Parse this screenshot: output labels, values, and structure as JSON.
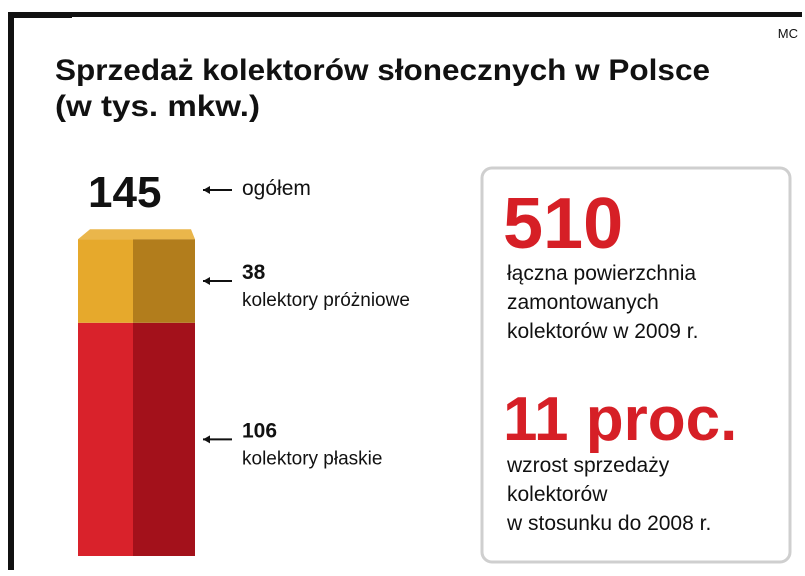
{
  "chart_data": {
    "type": "stacked_bar",
    "title": "Sprzedaż kolektorów słonecznych w Polsce",
    "subtitle": "(w tys. mkw.)",
    "credit": "MC",
    "total": {
      "value": 145,
      "label": "ogółem"
    },
    "series": [
      {
        "name": "kolektory płaskie",
        "color": "#d9222b",
        "shade": "#a3111b",
        "values": [
          106
        ]
      },
      {
        "name": "kolektory próżniowe",
        "color": "#e6a92c",
        "shade": "#b27d1c",
        "values": [
          38
        ]
      }
    ],
    "facts": [
      {
        "value": 510,
        "lines": [
          "łączna powierzchnia",
          "zamontowanych",
          "kolektorów w 2009 r."
        ]
      },
      {
        "value": 11,
        "value_label": "11 proc.",
        "lines": [
          "wzrost sprzedaży",
          "kolektorów",
          "w stosunku do 2008 r."
        ]
      }
    ]
  }
}
